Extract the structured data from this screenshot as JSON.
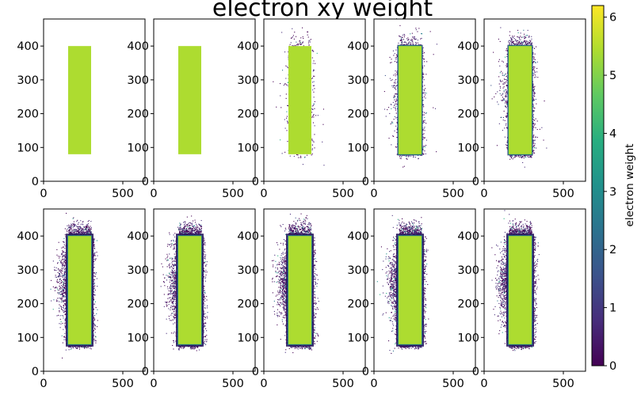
{
  "chart_data": {
    "type": "scatter",
    "title": "electron xy weight",
    "layout_grid": {
      "rows": 2,
      "cols": 5
    },
    "panel_x_range": [
      0,
      640
    ],
    "panel_y_range": [
      0,
      480
    ],
    "panel_x_ticks": [
      0,
      500
    ],
    "panel_y_ticks": [
      0,
      100,
      200,
      300,
      400
    ],
    "colorbar": {
      "label": "electron weight",
      "range": [
        0,
        6.2
      ],
      "ticks": [
        0,
        1,
        2,
        3,
        4,
        5,
        6
      ],
      "colormap": "viridis"
    },
    "rectangle": {
      "x": [
        155,
        300
      ],
      "y": [
        80,
        400
      ],
      "weight": 5.5
    },
    "panels": [
      {
        "index": 0,
        "halo_points": 0,
        "left_lobe": 0.0
      },
      {
        "index": 1,
        "halo_points": 0,
        "left_lobe": 0.0
      },
      {
        "index": 2,
        "halo_points": 180,
        "left_lobe": 0.25
      },
      {
        "index": 3,
        "halo_points": 420,
        "left_lobe": 0.45
      },
      {
        "index": 4,
        "halo_points": 650,
        "left_lobe": 0.6
      },
      {
        "index": 5,
        "halo_points": 1500,
        "left_lobe": 1.0
      },
      {
        "index": 6,
        "halo_points": 1550,
        "left_lobe": 1.0
      },
      {
        "index": 7,
        "halo_points": 1650,
        "left_lobe": 1.0
      },
      {
        "index": 8,
        "halo_points": 1700,
        "left_lobe": 1.0
      },
      {
        "index": 9,
        "halo_points": 1750,
        "left_lobe": 1.0
      }
    ]
  }
}
